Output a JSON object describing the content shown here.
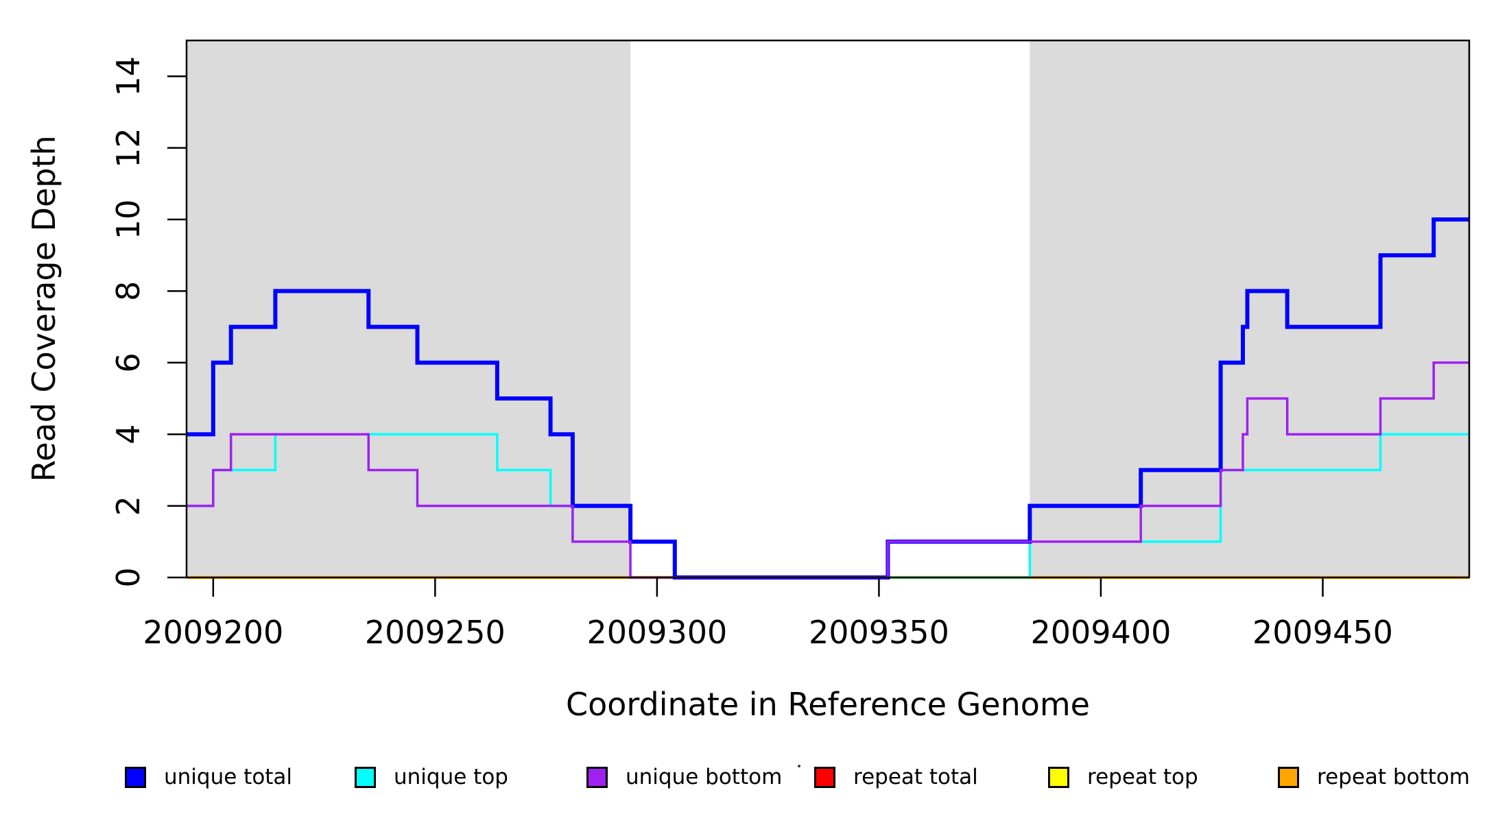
{
  "page": {
    "background": "#ffffff"
  },
  "chart_data": {
    "type": "line",
    "subtype": "step-coverage-plot",
    "title": "",
    "xlabel": "Coordinate in Reference Genome",
    "ylabel": "Read Coverage Depth",
    "xlim": [
      2009194,
      2009483
    ],
    "ylim": [
      0,
      15
    ],
    "x_ticks": [
      2009200,
      2009250,
      2009300,
      2009350,
      2009400,
      2009450
    ],
    "y_ticks": [
      0,
      2,
      4,
      6,
      8,
      10,
      12,
      14
    ],
    "grid": false,
    "plot_background": "#ffffff",
    "shading_color": "#DBDBDB",
    "axis_color": "#000000",
    "shaded_regions": [
      {
        "x_start": 2009194,
        "x_end": 2009294
      },
      {
        "x_start": 2009384,
        "x_end": 2009483
      }
    ],
    "series_note": "steps = [coordinate, depth]; depth holds from that coordinate until the next entry; last value extends to xlim end; array order = draw order (later drawn on top)",
    "series": [
      {
        "name": "repeat total",
        "color": "#FF0000",
        "line_width": 3.5,
        "steps": [
          [
            2009194,
            0
          ]
        ]
      },
      {
        "name": "repeat top",
        "color": "#FFFF00",
        "line_width": 3.5,
        "steps": [
          [
            2009194,
            0
          ]
        ]
      },
      {
        "name": "repeat bottom",
        "color": "#FFA500",
        "line_width": 4.5,
        "steps": [
          [
            2009194,
            0
          ]
        ]
      },
      {
        "name": "unique top",
        "color": "#00FFFF",
        "line_width": 3.5,
        "steps": [
          [
            2009194,
            2
          ],
          [
            2009200,
            3
          ],
          [
            2009214,
            4
          ],
          [
            2009264,
            3
          ],
          [
            2009276,
            2
          ],
          [
            2009281,
            1
          ],
          [
            2009304,
            0
          ],
          [
            2009384,
            1
          ],
          [
            2009427,
            3
          ],
          [
            2009463,
            4
          ]
        ]
      },
      {
        "name": "unique total",
        "color": "#0000FF",
        "line_width": 6,
        "steps": [
          [
            2009194,
            4
          ],
          [
            2009200,
            6
          ],
          [
            2009204,
            7
          ],
          [
            2009214,
            8
          ],
          [
            2009235,
            7
          ],
          [
            2009246,
            6
          ],
          [
            2009264,
            5
          ],
          [
            2009276,
            4
          ],
          [
            2009281,
            2
          ],
          [
            2009294,
            1
          ],
          [
            2009304,
            0
          ],
          [
            2009352,
            1
          ],
          [
            2009384,
            2
          ],
          [
            2009409,
            3
          ],
          [
            2009427,
            6
          ],
          [
            2009432,
            7
          ],
          [
            2009433,
            8
          ],
          [
            2009442,
            7
          ],
          [
            2009463,
            9
          ],
          [
            2009475,
            10
          ]
        ]
      },
      {
        "name": "unique bottom",
        "color": "#A020F0",
        "line_width": 3.5,
        "steps": [
          [
            2009194,
            2
          ],
          [
            2009200,
            3
          ],
          [
            2009204,
            4
          ],
          [
            2009235,
            3
          ],
          [
            2009246,
            2
          ],
          [
            2009281,
            1
          ],
          [
            2009294,
            0
          ],
          [
            2009352,
            1
          ],
          [
            2009409,
            2
          ],
          [
            2009427,
            3
          ],
          [
            2009432,
            4
          ],
          [
            2009433,
            5
          ],
          [
            2009442,
            4
          ],
          [
            2009463,
            5
          ],
          [
            2009475,
            6
          ]
        ]
      }
    ],
    "legend": {
      "position": "bottom",
      "entries": [
        {
          "label": "unique total",
          "color": "#0000FF"
        },
        {
          "label": "unique top",
          "color": "#00FFFF"
        },
        {
          "label": "unique bottom",
          "color": "#A020F0"
        },
        {
          "label": "repeat total",
          "color": "#FF0000"
        },
        {
          "label": "repeat top",
          "color": "#FFFF00"
        },
        {
          "label": "repeat bottom",
          "color": "#FFA500"
        }
      ]
    }
  }
}
